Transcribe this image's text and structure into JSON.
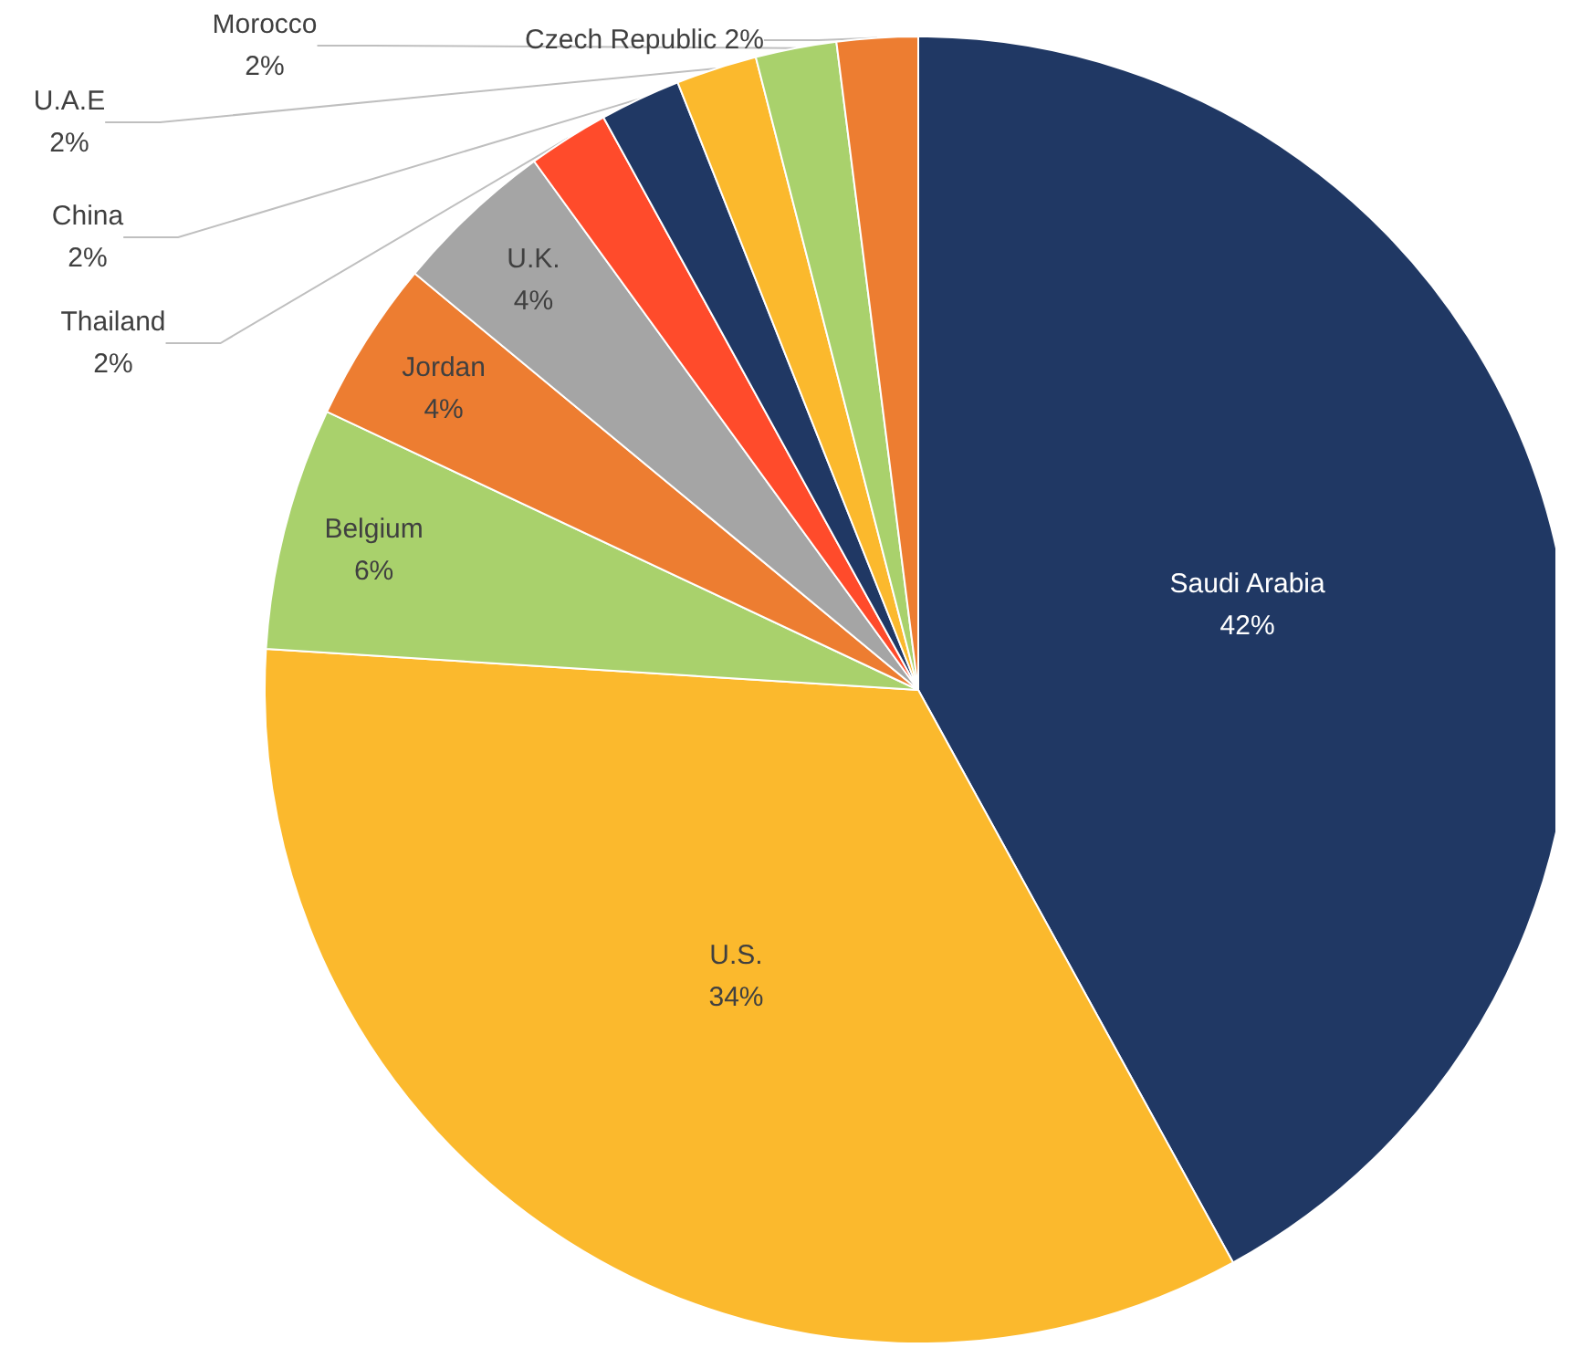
{
  "chart_data": {
    "type": "pie",
    "categories": [
      "Saudi Arabia",
      "U.S.",
      "Belgium",
      "Jordan",
      "U.K.",
      "Thailand",
      "China",
      "U.A.E",
      "Morocco",
      "Czech Republic"
    ],
    "values": [
      42,
      34,
      6,
      4,
      4,
      2,
      2,
      2,
      2,
      2
    ],
    "value_labels": [
      "42%",
      "34%",
      "6%",
      "4%",
      "4%",
      "2%",
      "2%",
      "2%",
      "2%",
      "2%"
    ],
    "colors": [
      "#203864",
      "#fbb92d",
      "#a9d16c",
      "#ed7d31",
      "#a5a5a5",
      "#ff4b2b",
      "#203864",
      "#fbb92d",
      "#a9d16c",
      "#ed7d31"
    ],
    "legend": false
  }
}
